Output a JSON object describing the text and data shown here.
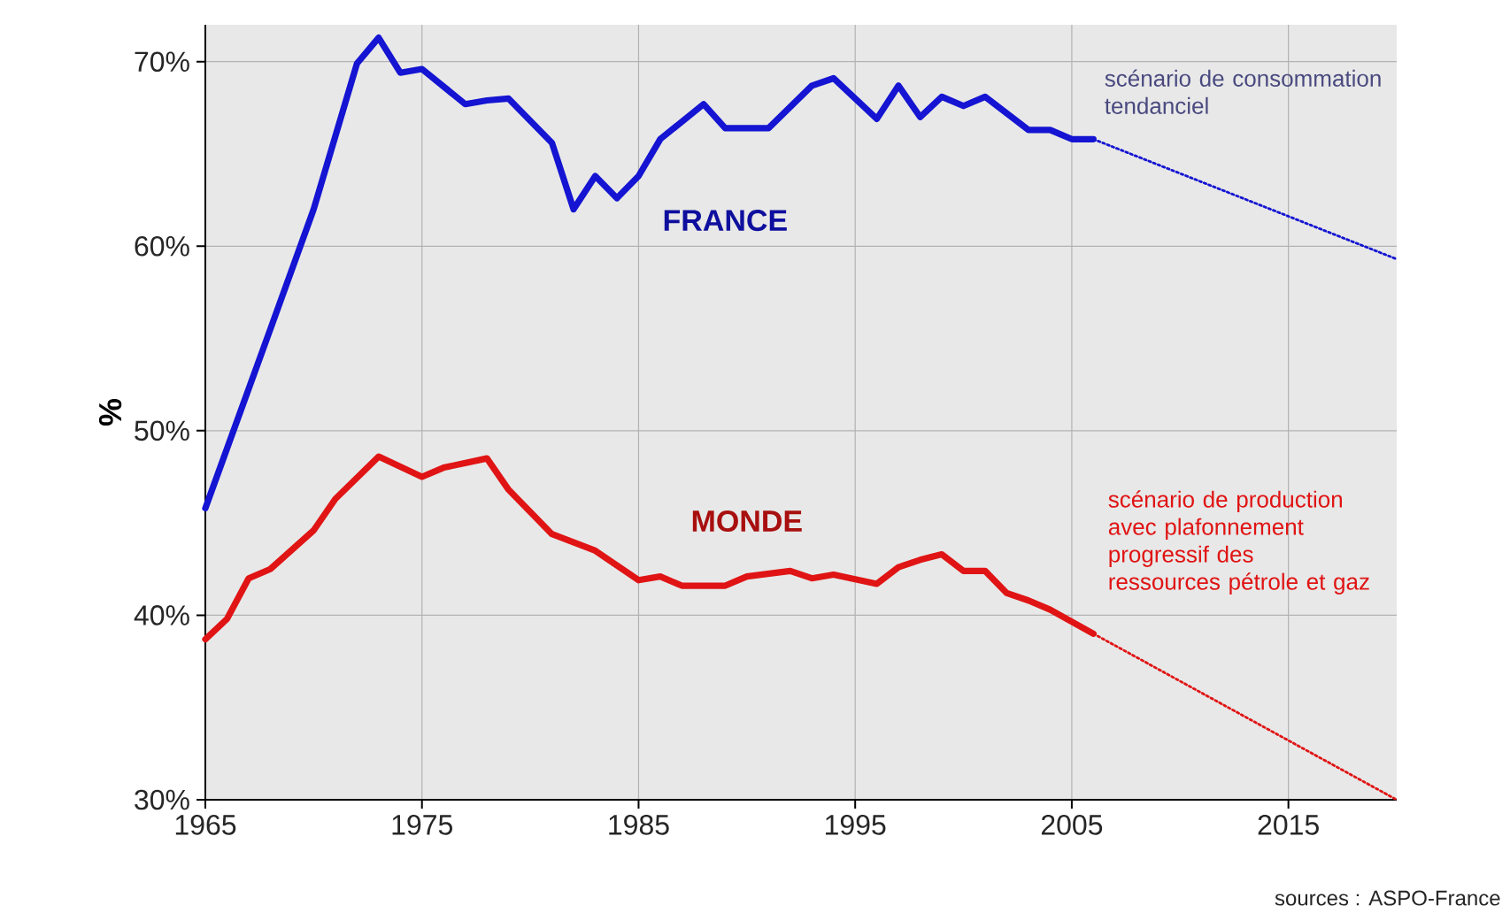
{
  "chart_data": {
    "type": "line",
    "ylabel": "%",
    "xlim": [
      1965,
      2020
    ],
    "ylim": [
      30,
      72
    ],
    "xticks": [
      1965,
      1975,
      1985,
      1995,
      2005,
      2015
    ],
    "yticks": [
      {
        "value": 30,
        "label": "30%"
      },
      {
        "value": 40,
        "label": "40%"
      },
      {
        "value": 50,
        "label": "50%"
      },
      {
        "value": 60,
        "label": "60%"
      },
      {
        "value": 70,
        "label": "70%"
      }
    ],
    "grid": true,
    "series": [
      {
        "name": "FRANCE",
        "color": "#1414d2",
        "line_style": "solid",
        "x": [
          1965,
          1968,
          1970,
          1972,
          1973,
          1974,
          1975,
          1977,
          1978,
          1979,
          1981,
          1982,
          1983,
          1984,
          1985,
          1986,
          1988,
          1989,
          1991,
          1993,
          1994,
          1996,
          1997,
          1998,
          1999,
          2000,
          2001,
          2003,
          2004,
          2005,
          2006
        ],
        "values": [
          45.8,
          55.5,
          62,
          69.9,
          71.3,
          69.4,
          69.6,
          67.7,
          67.9,
          68.0,
          65.6,
          62.0,
          63.8,
          62.6,
          63.8,
          65.8,
          67.7,
          66.4,
          66.4,
          68.7,
          69.1,
          66.9,
          68.7,
          67.0,
          68.1,
          67.6,
          68.1,
          66.3,
          66.3,
          65.8,
          65.8
        ]
      },
      {
        "color": "#1414d2",
        "line_style": "dotted",
        "x": [
          2006,
          2020
        ],
        "values": [
          65.8,
          59.3
        ]
      },
      {
        "name": "MONDE",
        "color": "#e01414",
        "line_style": "solid",
        "x": [
          1965,
          1966,
          1967,
          1968,
          1970,
          1971,
          1973,
          1975,
          1976,
          1978,
          1979,
          1981,
          1983,
          1985,
          1986,
          1987,
          1989,
          1990,
          1992,
          1993,
          1994,
          1996,
          1997,
          1998,
          1999,
          2000,
          2001,
          2002,
          2003,
          2004,
          2006
        ],
        "values": [
          38.7,
          39.8,
          42.0,
          42.5,
          44.6,
          46.3,
          48.6,
          47.5,
          48.0,
          48.5,
          46.8,
          44.4,
          43.5,
          41.9,
          42.1,
          41.6,
          41.6,
          42.1,
          42.4,
          42.0,
          42.2,
          41.7,
          42.6,
          43.0,
          43.3,
          42.4,
          42.4,
          41.2,
          40.8,
          40.3,
          39.0
        ]
      },
      {
        "color": "#e01414",
        "line_style": "dotted",
        "x": [
          2006,
          2020
        ],
        "values": [
          39.0,
          30
        ]
      }
    ],
    "annotations": [
      {
        "text": "scénario de consommation tendanciel",
        "x": 2006,
        "y": 65.8
      },
      {
        "text": "scénario de production avec plafonnement progressif des ressources pétrole et gaz",
        "x": 2006,
        "y": 39.0
      },
      "sources : ASPO-France"
    ]
  }
}
